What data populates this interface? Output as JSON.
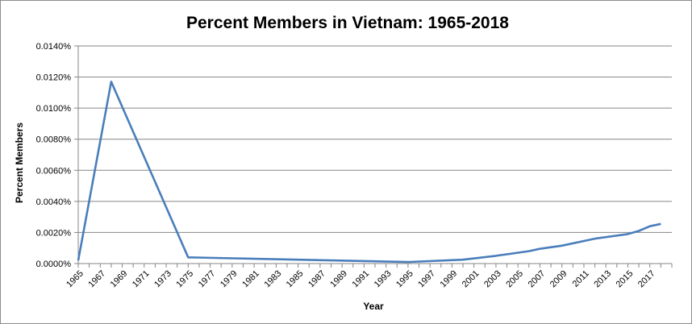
{
  "chart_data": {
    "type": "line",
    "title": "Percent Members in Vietnam: 1965-2018",
    "xlabel": "Year",
    "ylabel": "Percent Members",
    "ylim": [
      0,
      0.014
    ],
    "yticks": [
      0,
      0.002,
      0.004,
      0.006,
      0.008,
      0.01,
      0.012,
      0.014
    ],
    "ytick_labels": [
      "0.0000%",
      "0.0020%",
      "0.0040%",
      "0.0060%",
      "0.0080%",
      "0.0100%",
      "0.0120%",
      "0.0140%"
    ],
    "xlim": [
      1965,
      2018
    ],
    "xtick_labels": [
      "1965",
      "1967",
      "1969",
      "1971",
      "1973",
      "1975",
      "1977",
      "1979",
      "1981",
      "1983",
      "1985",
      "1987",
      "1989",
      "1991",
      "1993",
      "1995",
      "1997",
      "1999",
      "2001",
      "2003",
      "2005",
      "2007",
      "2009",
      "2011",
      "2013",
      "2015",
      "2017"
    ],
    "grid": true,
    "legend": "none",
    "series_color": "#4a7ebb",
    "series": [
      {
        "x": [
          1965,
          1968,
          1975,
          1985,
          1995,
          2000,
          2003,
          2006,
          2007,
          2009,
          2012,
          2015,
          2016,
          2017,
          2018
        ],
        "y": [
          0.0002,
          0.0117,
          0.0004,
          0.00025,
          0.0001,
          0.00025,
          0.0005,
          0.0008,
          0.00095,
          0.00115,
          0.0016,
          0.0019,
          0.0021,
          0.0024,
          0.00255
        ]
      }
    ]
  }
}
